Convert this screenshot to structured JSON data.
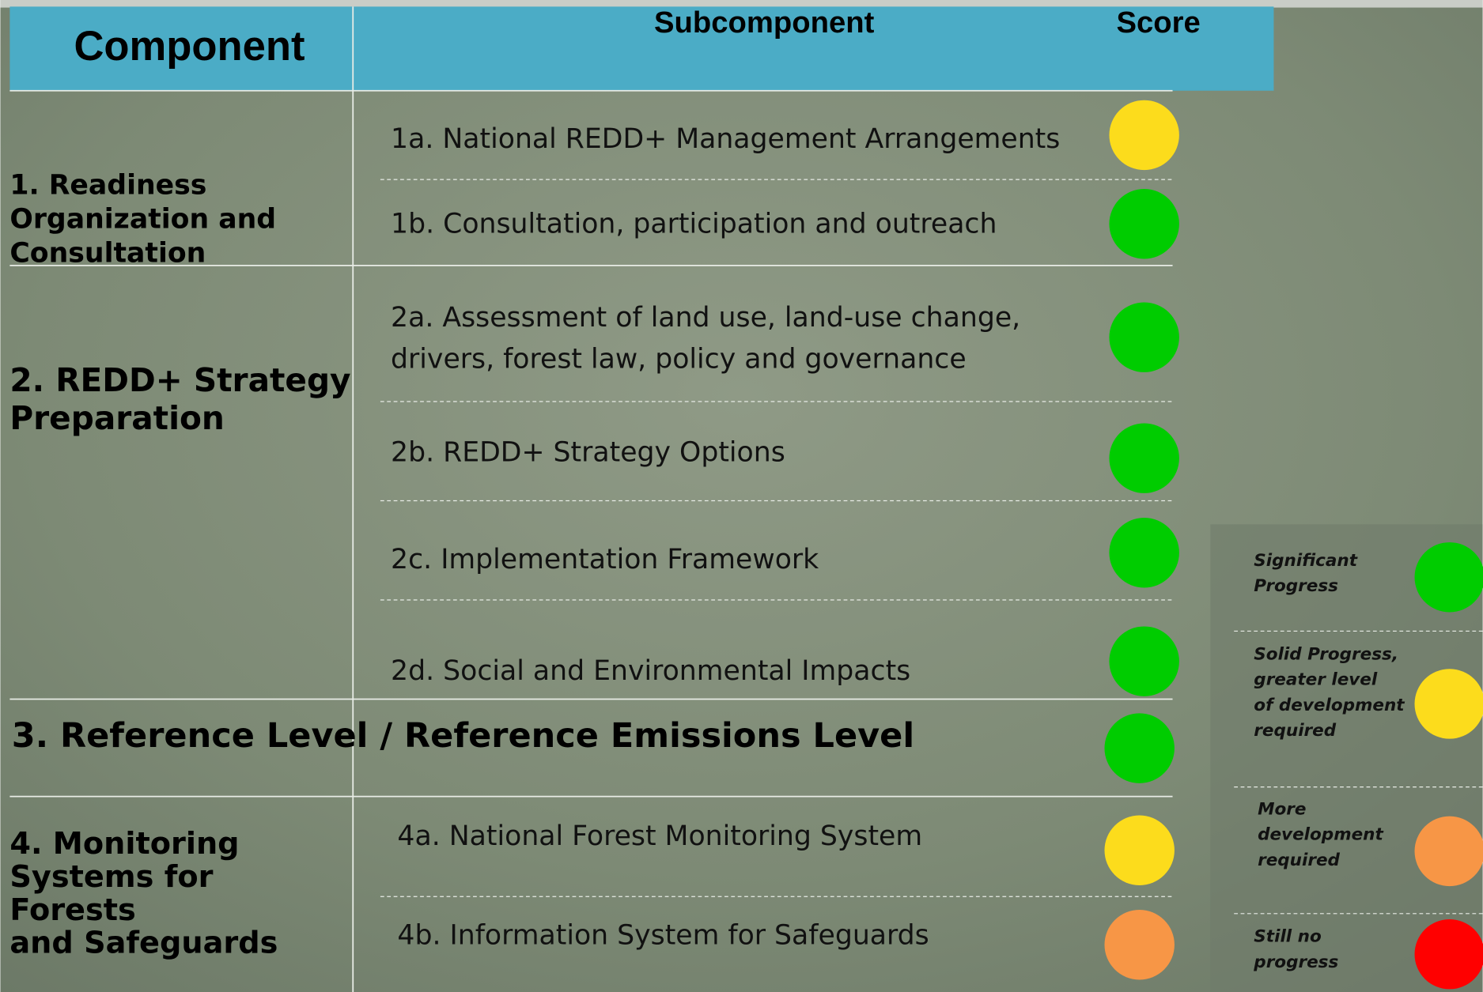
{
  "header": {
    "component": "Component",
    "subcomponent": "Subcomponent",
    "score": "Score"
  },
  "components": [
    {
      "lines": [
        "1. Readiness",
        "Organization and",
        "Consultation"
      ],
      "subcomponents": [
        {
          "lines": [
            "1a. National REDD+ Management Arrangements"
          ],
          "color": "#fcdc1c"
        },
        {
          "lines": [
            "1b. Consultation, participation and outreach"
          ],
          "color": "#00cc00"
        }
      ]
    },
    {
      "lines": [
        "2. REDD+ Strategy",
        "Preparation"
      ],
      "subcomponents": [
        {
          "lines": [
            "2a. Assessment of land use, land-use change,",
            "drivers, forest law, policy and governance"
          ],
          "color": "#00cc00"
        },
        {
          "lines": [
            "2b. REDD+ Strategy Options"
          ],
          "color": "#00cc00"
        },
        {
          "lines": [
            "2c. Implementation Framework"
          ],
          "color": "#00cc00"
        },
        {
          "lines": [
            "2d. Social and Environmental Impacts"
          ],
          "color": "#00cc00"
        }
      ]
    },
    {
      "lines": [
        "3. Reference Level / Reference Emissions Level"
      ],
      "color": "#00cc00"
    },
    {
      "lines": [
        "4. Monitoring",
        "Systems for",
        "Forests",
        "and Safeguards"
      ],
      "subcomponents": [
        {
          "lines": [
            "4a. National Forest Monitoring System"
          ],
          "color": "#fcdc1c"
        },
        {
          "lines": [
            "4b. Information System for Safeguards"
          ],
          "color": "#f79646"
        }
      ]
    }
  ],
  "legend": [
    {
      "lines": [
        "Significant",
        "Progress"
      ],
      "color": "#00cc00"
    },
    {
      "lines": [
        "Solid Progress,",
        "greater level",
        "of development",
        "required"
      ],
      "color": "#fcdc1c"
    },
    {
      "lines": [
        "More",
        "development",
        "required"
      ],
      "color": "#f79646"
    },
    {
      "lines": [
        "Still no",
        "progress"
      ],
      "color": "#ff0000"
    }
  ]
}
